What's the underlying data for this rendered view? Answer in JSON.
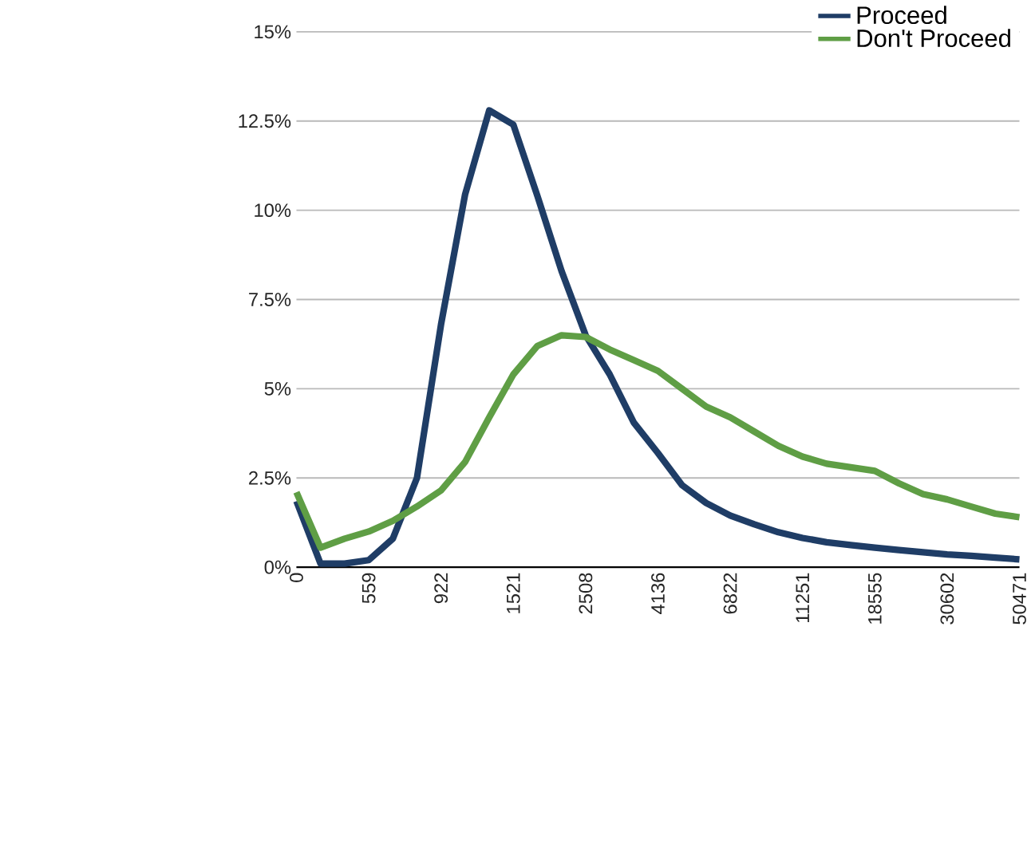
{
  "chart_data": {
    "type": "line",
    "categories": [
      "0",
      null,
      null,
      "559",
      null,
      null,
      "922",
      null,
      null,
      "1521",
      null,
      null,
      "2508",
      null,
      null,
      "4136",
      null,
      null,
      "6822",
      null,
      null,
      "11251",
      null,
      null,
      "18555",
      null,
      null,
      "30602",
      null,
      null,
      "50471"
    ],
    "series": [
      {
        "name": "Proceed",
        "color": "#1f3d66",
        "values": [
          1.85,
          0.1,
          0.1,
          0.2,
          0.8,
          2.5,
          6.8,
          10.45,
          12.8,
          12.4,
          10.4,
          8.3,
          6.5,
          5.4,
          4.05,
          3.2,
          2.3,
          1.8,
          1.45,
          1.2,
          0.98,
          0.82,
          0.7,
          0.62,
          0.55,
          0.48,
          0.42,
          0.36,
          0.32,
          0.27,
          0.22
        ]
      },
      {
        "name": "Don't Proceed",
        "color": "#5f9e45",
        "values": [
          2.1,
          0.55,
          0.8,
          1.0,
          1.3,
          1.7,
          2.15,
          2.95,
          4.2,
          5.4,
          6.2,
          6.5,
          6.45,
          6.1,
          5.8,
          5.5,
          5.0,
          4.5,
          4.2,
          3.8,
          3.4,
          3.1,
          2.9,
          2.8,
          2.7,
          2.35,
          2.05,
          1.9,
          1.7,
          1.5,
          1.4
        ]
      }
    ],
    "ylim": [
      0,
      15
    ],
    "yticks": [
      {
        "value": 0,
        "label": "0%"
      },
      {
        "value": 2.5,
        "label": "2.5%"
      },
      {
        "value": 5,
        "label": "5%"
      },
      {
        "value": 7.5,
        "label": "7.5%"
      },
      {
        "value": 10,
        "label": "10%"
      },
      {
        "value": 12.5,
        "label": "12.5%"
      },
      {
        "value": 15,
        "label": "15%"
      }
    ],
    "grid": "y",
    "legend": "top right",
    "marker": "none",
    "line_style": "solid"
  }
}
